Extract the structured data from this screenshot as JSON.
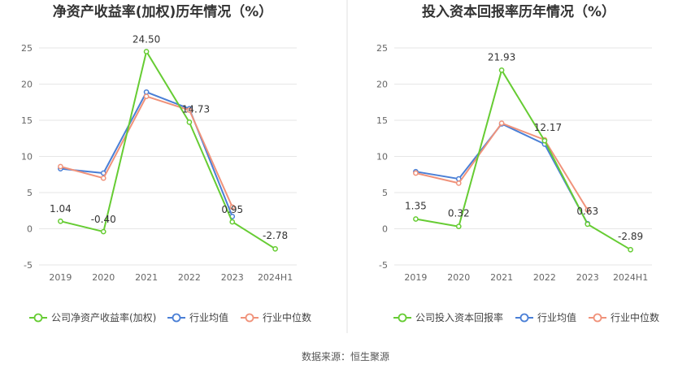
{
  "source_note": "数据来源：恒生聚源",
  "colors": {
    "company": "#66cc33",
    "industry_avg": "#4a7fd6",
    "industry_median": "#f0927a",
    "grid": "#e6e6e6",
    "divider": "#e0e0e0"
  },
  "chart_data": [
    {
      "type": "line",
      "title": "净资产收益率(加权)历年情况（%）",
      "categories": [
        "2019",
        "2020",
        "2021",
        "2022",
        "2023",
        "2024H1"
      ],
      "ylim": [
        -5,
        25
      ],
      "yticks": [
        -5,
        0,
        5,
        10,
        15,
        20,
        25
      ],
      "grid": true,
      "legend_position": "bottom-left",
      "series": [
        {
          "name": "公司净资产收益率(加权)",
          "color_key": "company",
          "values": [
            1.04,
            -0.4,
            24.5,
            14.73,
            0.95,
            -2.78
          ],
          "labels": [
            "1.04",
            "-0.40",
            "24.50",
            "14.73",
            "0.95",
            "-2.78"
          ]
        },
        {
          "name": "行业均值",
          "color_key": "industry_avg",
          "values": [
            8.3,
            7.7,
            18.9,
            16.6,
            1.7,
            null
          ]
        },
        {
          "name": "行业中位数",
          "color_key": "industry_median",
          "values": [
            8.6,
            7.0,
            18.3,
            16.4,
            3.0,
            null
          ]
        }
      ]
    },
    {
      "type": "line",
      "title": "投入资本回报率历年情况（%）",
      "categories": [
        "2019",
        "2020",
        "2021",
        "2022",
        "2023",
        "2024H1"
      ],
      "ylim": [
        -5,
        25
      ],
      "yticks": [
        -5,
        0,
        5,
        10,
        15,
        20,
        25
      ],
      "grid": true,
      "legend_position": "bottom-left",
      "series": [
        {
          "name": "公司投入资本回报率",
          "color_key": "company",
          "values": [
            1.35,
            0.32,
            21.93,
            12.17,
            0.63,
            -2.89
          ],
          "labels": [
            "1.35",
            "0.32",
            "21.93",
            "12.17",
            "0.63",
            "-2.89"
          ]
        },
        {
          "name": "行业均值",
          "color_key": "industry_avg",
          "values": [
            7.9,
            6.9,
            14.5,
            11.7,
            0.7,
            null
          ]
        },
        {
          "name": "行业中位数",
          "color_key": "industry_median",
          "values": [
            7.7,
            6.3,
            14.6,
            12.3,
            2.6,
            null
          ]
        }
      ]
    }
  ]
}
